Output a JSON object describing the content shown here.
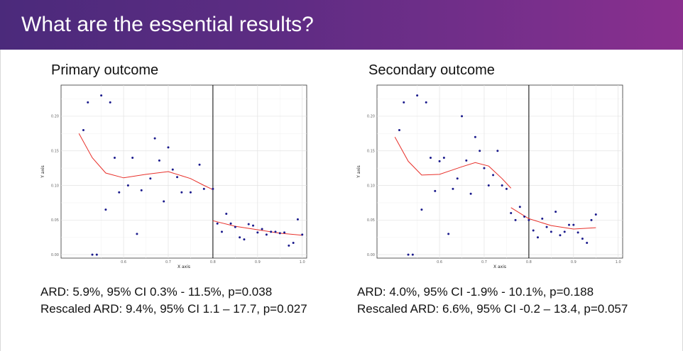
{
  "slide": {
    "title": "What are the essential results?"
  },
  "colors": {
    "header_start": "#4b2a7b",
    "header_end": "#8a2f8e",
    "point": "#1a1a8c",
    "fit": "#e8302a",
    "cutoff": "#000000"
  },
  "panels": [
    {
      "title": "Primary outcome",
      "results": [
        "ARD: 5.9%, 95% CI 0.3% - 11.5%, p=0.038",
        "Rescaled ARD: 9.4%, 95% CI 1.1 – 17.7, p=0.027"
      ]
    },
    {
      "title": "Secondary outcome",
      "results": [
        "ARD: 4.0%, 95% CI -1.9% - 10.1%, p=0.188",
        "Rescaled ARD: 6.6%, 95% CI -0.2 – 13.4, p=0.057"
      ]
    }
  ],
  "chart_data": [
    {
      "type": "scatter",
      "xlabel": "X axis",
      "ylabel": "Y axis",
      "xlim": [
        0.46,
        1.01
      ],
      "ylim": [
        -0.005,
        0.245
      ],
      "xticks": [
        0.6,
        0.7,
        0.8,
        0.9,
        1.0
      ],
      "xtick_labels": [
        "0.6",
        "0.7",
        "0.8",
        "0.9",
        "1.0"
      ],
      "yticks": [
        0.0,
        0.05,
        0.1,
        0.15,
        0.2
      ],
      "ytick_labels": [
        "0.00",
        "0.05",
        "0.10",
        "0.15",
        "0.20"
      ],
      "cutoff": 0.8,
      "grid": true,
      "points": [
        [
          0.51,
          0.18
        ],
        [
          0.52,
          0.22
        ],
        [
          0.53,
          0.0
        ],
        [
          0.54,
          0.0
        ],
        [
          0.55,
          0.23
        ],
        [
          0.56,
          0.065
        ],
        [
          0.57,
          0.22
        ],
        [
          0.58,
          0.14
        ],
        [
          0.59,
          0.09
        ],
        [
          0.61,
          0.1
        ],
        [
          0.62,
          0.14
        ],
        [
          0.63,
          0.03
        ],
        [
          0.64,
          0.093
        ],
        [
          0.66,
          0.11
        ],
        [
          0.67,
          0.168
        ],
        [
          0.68,
          0.136
        ],
        [
          0.69,
          0.077
        ],
        [
          0.7,
          0.155
        ],
        [
          0.71,
          0.123
        ],
        [
          0.72,
          0.112
        ],
        [
          0.73,
          0.09
        ],
        [
          0.75,
          0.09
        ],
        [
          0.77,
          0.13
        ],
        [
          0.78,
          0.095
        ],
        [
          0.8,
          0.095
        ],
        [
          0.81,
          0.045
        ],
        [
          0.82,
          0.033
        ],
        [
          0.83,
          0.059
        ],
        [
          0.84,
          0.045
        ],
        [
          0.85,
          0.04
        ],
        [
          0.86,
          0.025
        ],
        [
          0.87,
          0.022
        ],
        [
          0.88,
          0.044
        ],
        [
          0.89,
          0.042
        ],
        [
          0.9,
          0.032
        ],
        [
          0.91,
          0.037
        ],
        [
          0.92,
          0.029
        ],
        [
          0.93,
          0.033
        ],
        [
          0.94,
          0.033
        ],
        [
          0.95,
          0.031
        ],
        [
          0.96,
          0.032
        ],
        [
          0.97,
          0.013
        ],
        [
          0.98,
          0.017
        ],
        [
          0.99,
          0.051
        ],
        [
          1.0,
          0.029
        ]
      ],
      "fit_left": [
        [
          0.5,
          0.175
        ],
        [
          0.53,
          0.14
        ],
        [
          0.56,
          0.118
        ],
        [
          0.6,
          0.111
        ],
        [
          0.65,
          0.116
        ],
        [
          0.7,
          0.12
        ],
        [
          0.75,
          0.11
        ],
        [
          0.78,
          0.1
        ],
        [
          0.8,
          0.094
        ]
      ],
      "fit_right": [
        [
          0.8,
          0.049
        ],
        [
          0.85,
          0.041
        ],
        [
          0.9,
          0.036
        ],
        [
          0.95,
          0.031
        ],
        [
          1.0,
          0.028
        ]
      ]
    },
    {
      "type": "scatter",
      "xlabel": "X axis",
      "ylabel": "Y axis",
      "xlim": [
        0.46,
        1.01
      ],
      "ylim": [
        -0.005,
        0.245
      ],
      "xticks": [
        0.6,
        0.7,
        0.8,
        0.9,
        1.0
      ],
      "xtick_labels": [
        "0.6",
        "0.7",
        "0.8",
        "0.9",
        "1.0"
      ],
      "yticks": [
        0.0,
        0.05,
        0.1,
        0.15,
        0.2
      ],
      "ytick_labels": [
        "0.00",
        "0.05",
        "0.10",
        "0.15",
        "0.20"
      ],
      "cutoff": 0.8,
      "grid": true,
      "points": [
        [
          0.51,
          0.18
        ],
        [
          0.52,
          0.22
        ],
        [
          0.53,
          0.0
        ],
        [
          0.54,
          0.0
        ],
        [
          0.55,
          0.23
        ],
        [
          0.56,
          0.065
        ],
        [
          0.57,
          0.22
        ],
        [
          0.58,
          0.14
        ],
        [
          0.59,
          0.092
        ],
        [
          0.6,
          0.135
        ],
        [
          0.61,
          0.14
        ],
        [
          0.62,
          0.03
        ],
        [
          0.63,
          0.095
        ],
        [
          0.64,
          0.11
        ],
        [
          0.65,
          0.2
        ],
        [
          0.66,
          0.136
        ],
        [
          0.67,
          0.088
        ],
        [
          0.68,
          0.17
        ],
        [
          0.69,
          0.15
        ],
        [
          0.7,
          0.125
        ],
        [
          0.71,
          0.1
        ],
        [
          0.72,
          0.115
        ],
        [
          0.73,
          0.15
        ],
        [
          0.74,
          0.1
        ],
        [
          0.75,
          0.095
        ],
        [
          0.76,
          0.06
        ],
        [
          0.77,
          0.05
        ],
        [
          0.78,
          0.069
        ],
        [
          0.79,
          0.055
        ],
        [
          0.8,
          0.05
        ],
        [
          0.81,
          0.035
        ],
        [
          0.82,
          0.025
        ],
        [
          0.83,
          0.052
        ],
        [
          0.84,
          0.04
        ],
        [
          0.85,
          0.033
        ],
        [
          0.86,
          0.062
        ],
        [
          0.87,
          0.028
        ],
        [
          0.88,
          0.033
        ],
        [
          0.89,
          0.043
        ],
        [
          0.9,
          0.043
        ],
        [
          0.91,
          0.032
        ],
        [
          0.92,
          0.023
        ],
        [
          0.93,
          0.017
        ],
        [
          0.94,
          0.05
        ],
        [
          0.95,
          0.058
        ]
      ],
      "fit_left": [
        [
          0.5,
          0.17
        ],
        [
          0.53,
          0.135
        ],
        [
          0.56,
          0.115
        ],
        [
          0.6,
          0.116
        ],
        [
          0.65,
          0.127
        ],
        [
          0.68,
          0.133
        ],
        [
          0.71,
          0.128
        ],
        [
          0.74,
          0.11
        ],
        [
          0.76,
          0.096
        ]
      ],
      "fit_right": [
        [
          0.76,
          0.068
        ],
        [
          0.8,
          0.052
        ],
        [
          0.85,
          0.042
        ],
        [
          0.9,
          0.037
        ],
        [
          0.95,
          0.039
        ]
      ]
    }
  ]
}
